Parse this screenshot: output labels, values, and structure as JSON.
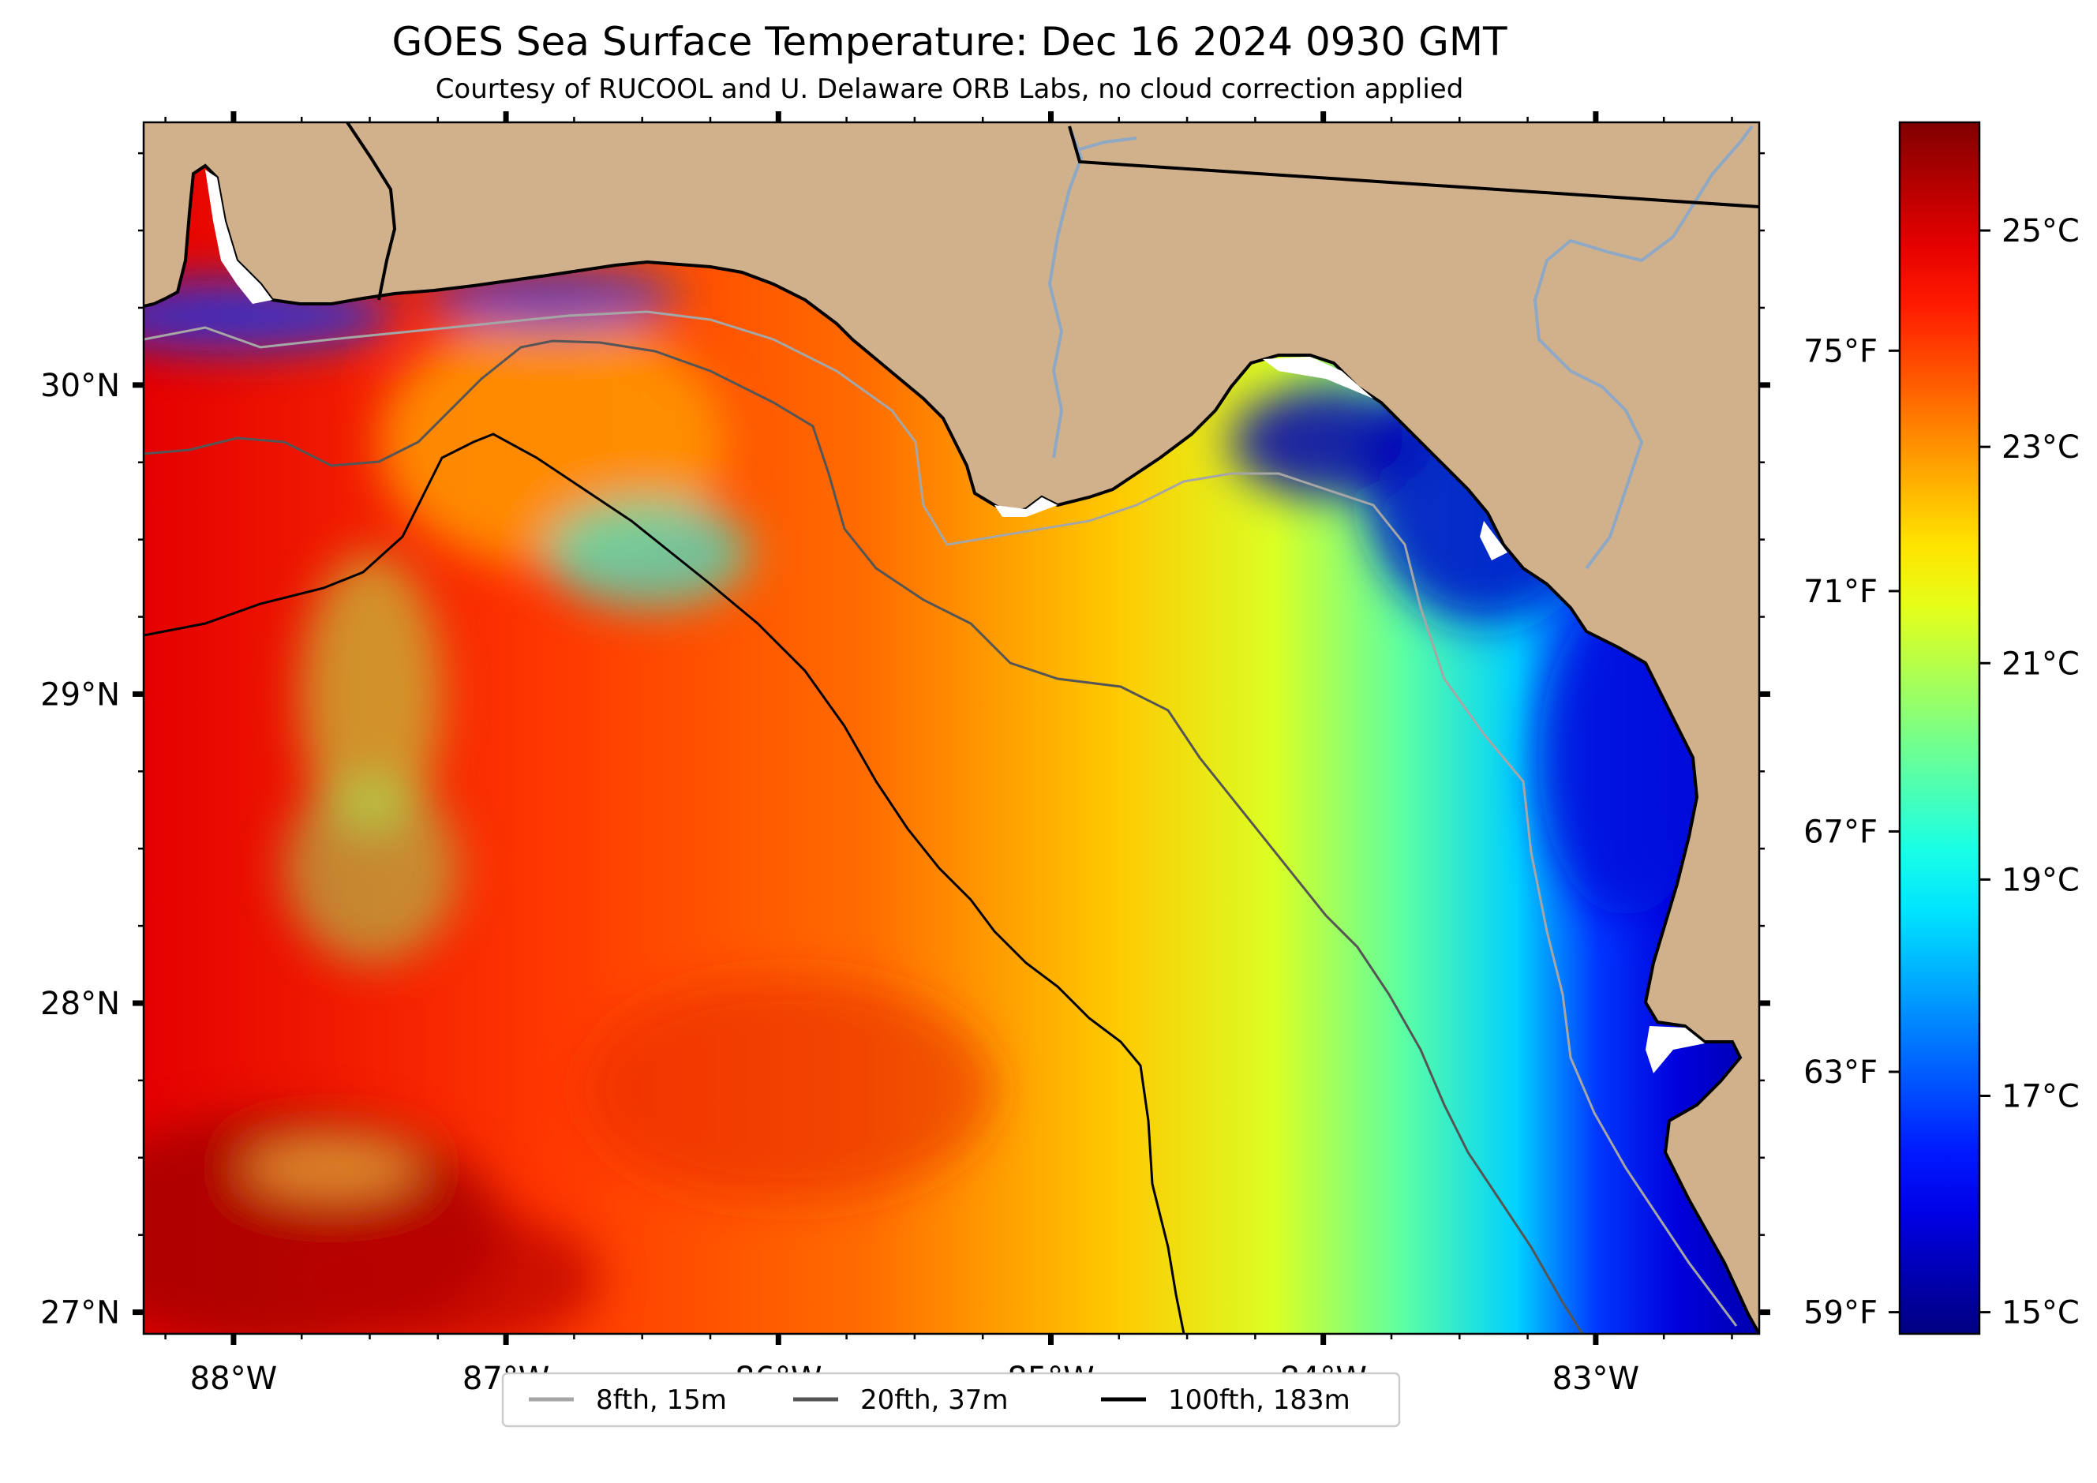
{
  "title": "GOES Sea Surface Temperature: Dec 16 2024 0930 GMT",
  "subtitle": "Courtesy of RUCOOL and U. Delaware ORB Labs, no cloud correction applied",
  "map": {
    "lon_range": [
      -88.33,
      -82.4
    ],
    "lat_range": [
      26.93,
      30.85
    ],
    "land_color": "#d1b18c",
    "coast_color": "#000000",
    "river_color": "#8fa8c4",
    "x_ticks": [
      {
        "value": -88,
        "label": "88°W"
      },
      {
        "value": -87,
        "label": "87°W"
      },
      {
        "value": -86,
        "label": "86°W"
      },
      {
        "value": -85,
        "label": "85°W"
      },
      {
        "value": -84,
        "label": "84°W"
      },
      {
        "value": -83,
        "label": "83°W"
      }
    ],
    "y_ticks": [
      {
        "value": 30,
        "label": "30°N"
      },
      {
        "value": 29,
        "label": "29°N"
      },
      {
        "value": 28,
        "label": "28°N"
      },
      {
        "value": 27,
        "label": "27°N"
      }
    ],
    "minor_tick_step_deg": 0.25
  },
  "colorbar": {
    "colormap": "jet",
    "range_c": [
      14.8,
      26.0
    ],
    "celsius_ticks": [
      {
        "value": 25,
        "label": "25°C"
      },
      {
        "value": 23,
        "label": "23°C"
      },
      {
        "value": 21,
        "label": "21°C"
      },
      {
        "value": 19,
        "label": "19°C"
      },
      {
        "value": 17,
        "label": "17°C"
      },
      {
        "value": 15,
        "label": "15°C"
      }
    ],
    "fahrenheit_ticks": [
      {
        "value": 75,
        "label": "75°F"
      },
      {
        "value": 71,
        "label": "71°F"
      },
      {
        "value": 67,
        "label": "67°F"
      },
      {
        "value": 63,
        "label": "63°F"
      },
      {
        "value": 59,
        "label": "59°F"
      }
    ]
  },
  "legend": {
    "items": [
      {
        "label": "8fth, 15m",
        "color": "#a6a6a6"
      },
      {
        "label": "20fth, 37m",
        "color": "#555555"
      },
      {
        "label": "100fth, 183m",
        "color": "#000000"
      }
    ]
  }
}
